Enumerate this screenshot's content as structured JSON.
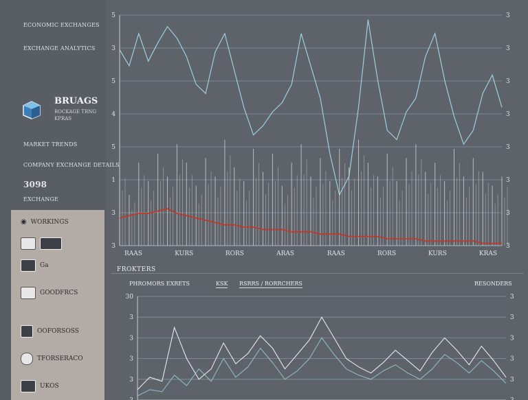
{
  "sidebar": {
    "nav_top": [
      "ECONOMIC EXCHANGES",
      "EXCHANGE ANALYTICS"
    ],
    "brand": "BRUAGS",
    "brand_sub": [
      "ROCKAGE TRNG",
      "KPRAS"
    ],
    "section_label": "MARKET TRENDS",
    "section_sub": "COMPANY EXCHANGE DETAILS",
    "metric": "3098",
    "metric_sub": "EXCHANGE",
    "panel_items": [
      {
        "label": "WORKINGS",
        "icon": "chart-icon"
      },
      {
        "label": "",
        "icon": "box-icon"
      },
      {
        "label": "Ga",
        "icon": "user-icon"
      },
      {
        "label": "GOODFRCS",
        "icon": "document-icon"
      },
      {
        "label": "OOFORSOSS",
        "icon": "gear-icon"
      },
      {
        "label": "TFORSERACO",
        "icon": "search-icon"
      },
      {
        "label": "UKOS",
        "icon": "folder-icon"
      }
    ]
  },
  "chart_top": {
    "xlabels": [
      "RAAS",
      "KURS",
      "RORS",
      "ARAS",
      "RAAS",
      "RORS",
      "KURS",
      "KRAS"
    ],
    "y_left": [
      "5",
      "3",
      "5",
      "4",
      "5",
      "1",
      "3",
      "3"
    ],
    "y_right": [
      "3",
      "3",
      "3",
      "3",
      "3",
      "3",
      "3",
      "3"
    ],
    "lines_color": "#9cd0e0",
    "trend_color": "#c0392b",
    "bars_color": "#d8dadd"
  },
  "section_title": "FROKTERS",
  "chart_bottom": {
    "controls": [
      "PHROMORS EXRETS",
      "KSK",
      "RSRRS / RORRCHERS",
      "RESONDERS"
    ],
    "y_left": [
      "30",
      "3",
      "3",
      "3",
      "3",
      "3"
    ],
    "y_right": [
      "3",
      "3",
      "3",
      "3",
      "3",
      "3"
    ],
    "lines_color": "#9cd0e0"
  },
  "chart_data": [
    {
      "type": "line",
      "x": [
        0,
        1,
        2,
        3,
        4,
        5,
        6,
        7,
        8,
        9,
        10,
        11,
        12,
        13,
        14,
        15,
        16,
        17,
        18,
        19,
        20,
        21,
        22,
        23,
        24,
        25,
        26,
        27,
        28,
        29,
        30,
        31,
        32,
        33,
        34,
        35,
        36,
        37,
        38,
        39,
        40
      ],
      "series": [
        {
          "values": [
            85,
            78,
            92,
            80,
            88,
            95,
            90,
            82,
            70,
            66,
            84,
            92,
            76,
            60,
            48,
            52,
            58,
            62,
            70,
            92,
            78,
            64,
            40,
            22,
            30,
            60,
            98,
            72,
            50,
            46,
            58,
            64,
            82,
            92,
            72,
            56,
            44,
            50,
            66,
            74,
            60
          ]
        },
        {
          "values": [
            34,
            22,
            36,
            28,
            40,
            30,
            44,
            36,
            26,
            38,
            30,
            46,
            34,
            28,
            42,
            32,
            40,
            26,
            36,
            44,
            30,
            38,
            28,
            42,
            34,
            46,
            36,
            30,
            40,
            28,
            38,
            44,
            32,
            36,
            28,
            42,
            30,
            38,
            32,
            26,
            30
          ]
        },
        {
          "values": [
            12,
            13,
            14,
            14,
            15,
            16,
            14,
            13,
            12,
            11,
            10,
            9,
            9,
            8,
            8,
            7,
            7,
            7,
            6,
            6,
            6,
            5,
            5,
            5,
            4,
            4,
            4,
            4,
            3,
            3,
            3,
            3,
            2,
            2,
            2,
            2,
            2,
            2,
            1,
            1,
            1
          ]
        }
      ],
      "xlabels": [
        "RAAS",
        "KURS",
        "RORS",
        "ARAS",
        "RAAS",
        "RORS",
        "KURS",
        "KRAS"
      ],
      "ylim": [
        0,
        100
      ],
      "grid": true
    },
    {
      "type": "line",
      "x": [
        0,
        1,
        2,
        3,
        4,
        5,
        6,
        7,
        8,
        9,
        10,
        11,
        12,
        13,
        14,
        15,
        16,
        17,
        18,
        19,
        20,
        21,
        22,
        23,
        24,
        25,
        26,
        27,
        28,
        29,
        30
      ],
      "series": [
        {
          "values": [
            10,
            22,
            18,
            70,
            40,
            20,
            30,
            55,
            35,
            45,
            62,
            50,
            30,
            44,
            58,
            80,
            60,
            40,
            32,
            26,
            36,
            48,
            38,
            28,
            46,
            60,
            48,
            34,
            52,
            38,
            22
          ]
        },
        {
          "values": [
            4,
            10,
            8,
            24,
            14,
            30,
            18,
            40,
            22,
            32,
            50,
            36,
            20,
            28,
            40,
            60,
            44,
            30,
            24,
            20,
            28,
            34,
            26,
            20,
            30,
            44,
            36,
            26,
            38,
            28,
            16
          ]
        }
      ],
      "ylim": [
        0,
        100
      ],
      "grid": true
    }
  ]
}
